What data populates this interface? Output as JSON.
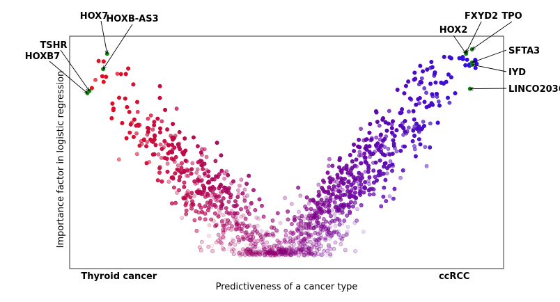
{
  "chart_data": {
    "type": "scatter",
    "title": "",
    "xlabel": "Predictiveness of a cancer type",
    "ylabel": "Importance factor in logistic regression",
    "xlim": [
      -1.1,
      1.1
    ],
    "ylim": [
      0,
      1.06
    ],
    "xticks": [
      {
        "value": -0.85,
        "label": "Thyroid cancer"
      },
      {
        "value": 0.85,
        "label": "ccRCC"
      }
    ],
    "grid": false,
    "legend": "none",
    "colors": {
      "left_end": "#e8101a",
      "middle": "#8e007e",
      "right_end": "#2a10e8",
      "highlight": "#0a8a0a"
    },
    "point_cloud": {
      "shape": "V",
      "count": 4200,
      "seed": 7,
      "min_y": 0.06,
      "left_arm_slope": 0.98,
      "right_arm_slope": 1.06,
      "description_values": "points fall along a V: y grows with |x|, red on the left, blue on the right, fading toward the bottom"
    },
    "highlighted_genes": [
      {
        "name": "HOX7",
        "x": -0.91,
        "y": 0.98
      },
      {
        "name": "HOXB-AS3",
        "x": -0.93,
        "y": 0.91
      },
      {
        "name": "TSHR",
        "x": -1.0,
        "y": 0.81
      },
      {
        "name": "HOXB7",
        "x": -1.01,
        "y": 0.8
      },
      {
        "name": "HOX2",
        "x": 0.91,
        "y": 0.98
      },
      {
        "name": "FXYD2",
        "x": 0.91,
        "y": 0.985
      },
      {
        "name": "TPO",
        "x": 0.94,
        "y": 1.0
      },
      {
        "name": "SFTA3",
        "x": 0.94,
        "y": 0.94
      },
      {
        "name": "IYD",
        "x": 0.94,
        "y": 0.93
      },
      {
        "name": "LINCO2036",
        "x": 0.93,
        "y": 0.82
      }
    ]
  }
}
